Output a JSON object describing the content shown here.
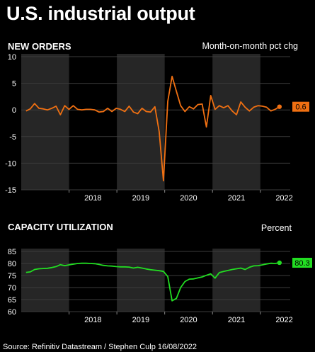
{
  "title": "U.S. industrial output",
  "source": "Source: Refinitiv Datastream / Stephen Culp 16/08/2022",
  "colors": {
    "background": "#000000",
    "band": "#262626",
    "grid": "#3c3c3c",
    "new_orders": "#f07012",
    "capacity": "#22dd22"
  },
  "chart_data": [
    {
      "type": "line",
      "title": "NEW ORDERS",
      "subtitle": "Month-on-month pct chg",
      "ylim": [
        -15,
        10
      ],
      "yticks": [
        10,
        5,
        0,
        -5,
        -10,
        -15
      ],
      "xlim": [
        2017.0,
        2022.625
      ],
      "xticks": [
        {
          "label": "2018",
          "x": 2018.0
        },
        {
          "label": "2019",
          "x": 2019.0
        },
        {
          "label": "2020",
          "x": 2020.0
        },
        {
          "label": "2021",
          "x": 2021.0
        },
        {
          "label": "2022",
          "x": 2022.0
        }
      ],
      "grid": true,
      "last_value_label": "0.6",
      "series": [
        {
          "values": [
            -0.2,
            0.2,
            1.2,
            0.3,
            0.2,
            0.0,
            0.3,
            0.7,
            -0.9,
            0.8,
            0.1,
            0.8,
            0.1,
            0.0,
            0.1,
            0.1,
            0.0,
            -0.4,
            -0.3,
            0.3,
            -0.3,
            0.3,
            0.1,
            -0.3,
            0.7,
            -0.4,
            -0.7,
            0.3,
            -0.3,
            -0.4,
            0.6,
            -4.1,
            -13.3,
            1.6,
            6.3,
            3.5,
            0.8,
            -0.3,
            0.6,
            0.2,
            1.0,
            1.1,
            -3.2,
            2.7,
            0.1,
            0.8,
            0.4,
            0.8,
            -0.2,
            -0.9,
            1.5,
            0.5,
            -0.2,
            0.5,
            0.8,
            0.7,
            0.5,
            -0.2,
            0.1,
            0.6
          ]
        }
      ]
    },
    {
      "type": "line",
      "title": "CAPACITY UTILIZATION",
      "subtitle": "Percent",
      "ylim": [
        60,
        85
      ],
      "yticks": [
        85,
        80,
        75,
        70,
        65,
        60
      ],
      "xlim": [
        2017.0,
        2022.625
      ],
      "xticks": [
        {
          "label": "2018",
          "x": 2018.0
        },
        {
          "label": "2019",
          "x": 2019.0
        },
        {
          "label": "2020",
          "x": 2020.0
        },
        {
          "label": "2021",
          "x": 2021.0
        },
        {
          "label": "2022",
          "x": 2022.0
        }
      ],
      "grid": true,
      "last_value_label": "80.3",
      "series": [
        {
          "values": [
            76.3,
            76.5,
            77.5,
            77.8,
            77.9,
            78.0,
            78.3,
            78.7,
            79.5,
            79.1,
            79.4,
            79.7,
            80.0,
            80.1,
            80.1,
            80.0,
            79.9,
            79.6,
            79.2,
            79.0,
            78.9,
            78.7,
            78.6,
            78.6,
            78.5,
            78.1,
            78.4,
            78.1,
            77.7,
            77.4,
            77.2,
            77.0,
            76.7,
            74.6,
            64.5,
            65.5,
            70.0,
            72.5,
            73.5,
            73.6,
            74.0,
            74.4,
            75.1,
            75.7,
            73.9,
            76.2,
            76.7,
            77.1,
            77.5,
            77.8,
            78.1,
            77.5,
            78.4,
            79.0,
            79.1,
            79.4,
            79.8,
            80.1,
            80.0,
            80.3
          ]
        }
      ]
    }
  ]
}
